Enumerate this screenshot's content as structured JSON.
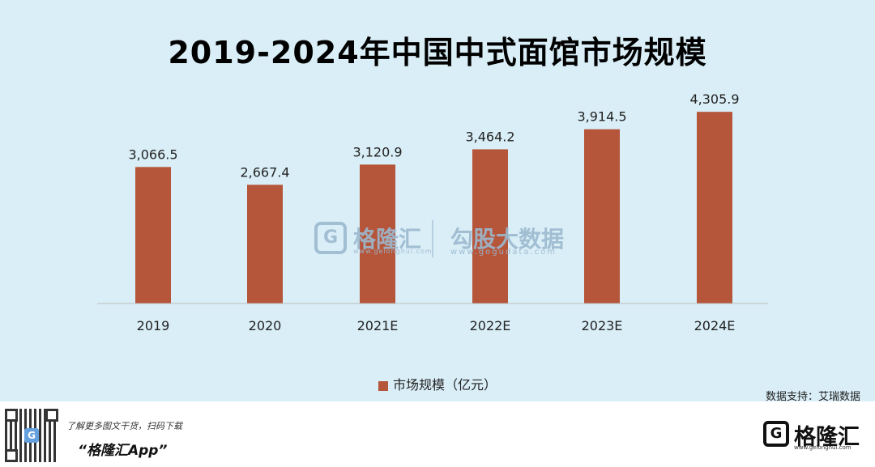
{
  "title": "2019-2024年中国中式面馆市场规模",
  "chart_data": {
    "type": "bar",
    "categories": [
      "2019",
      "2020",
      "2021E",
      "2022E",
      "2023E",
      "2024E"
    ],
    "values": [
      3066.5,
      2667.4,
      3120.9,
      3464.2,
      3914.5,
      4305.9
    ],
    "value_labels": [
      "3,066.5",
      "2,667.4",
      "3,120.9",
      "3,464.2",
      "3,914.5",
      "4,305.9"
    ],
    "series": [
      {
        "name": "市场规模（亿元）"
      }
    ],
    "legend_position": "bottom",
    "grid": false,
    "bar_color": "#b5553a",
    "ylim": [
      0,
      4800
    ]
  },
  "watermark": {
    "brand": "格隆汇",
    "brand_url": "www.gelonghui.com",
    "gogu": "勾股大数据",
    "gogu_url": "www.gogudata.com"
  },
  "source": "数据支持：艾瑞数据",
  "footer": {
    "promo_line1": "了解更多图文干货，扫码下载",
    "promo_line2": "“格隆汇App”",
    "brand_name": "格隆汇",
    "brand_url": "www.gelonghui.com",
    "logo_letter": "G"
  }
}
